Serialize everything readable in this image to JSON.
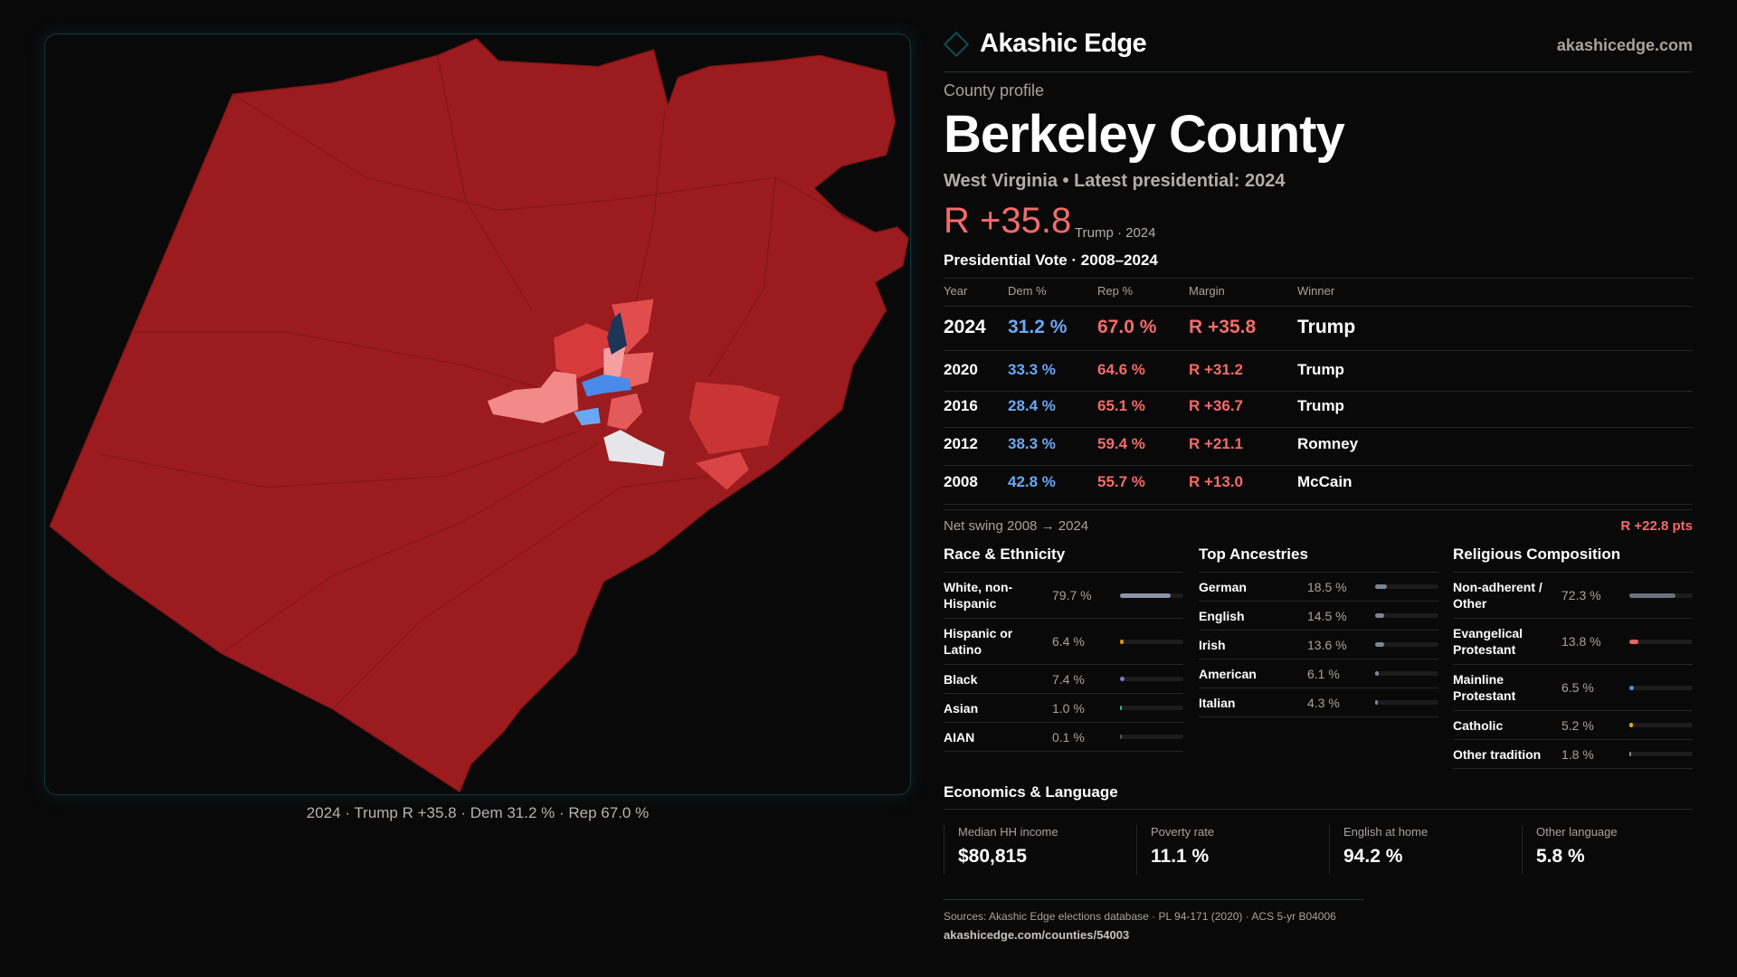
{
  "brand": {
    "name": "Akashic Edge",
    "site": "akashicedge.com"
  },
  "profile": {
    "kicker": "County profile",
    "title": "Berkeley County",
    "subtitle": "West Virginia • Latest presidential: 2024",
    "margin": "R +35.8",
    "margin_sub": "Trump · 2024"
  },
  "map": {
    "caption": "2024 · Trump R +35.8 · Dem 31.2 % · Rep 67.0 %"
  },
  "votes": {
    "title": "Presidential Vote · 2008–2024",
    "headers": [
      "Year",
      "Dem %",
      "Rep %",
      "Margin",
      "Winner"
    ],
    "rows": [
      {
        "year": "2024",
        "dem": "31.2 %",
        "rep": "67.0 %",
        "margin": "R +35.8",
        "winner": "Trump"
      },
      {
        "year": "2020",
        "dem": "33.3 %",
        "rep": "64.6 %",
        "margin": "R +31.2",
        "winner": "Trump"
      },
      {
        "year": "2016",
        "dem": "28.4 %",
        "rep": "65.1 %",
        "margin": "R +36.7",
        "winner": "Trump"
      },
      {
        "year": "2012",
        "dem": "38.3 %",
        "rep": "59.4 %",
        "margin": "R +21.1",
        "winner": "Romney"
      },
      {
        "year": "2008",
        "dem": "42.8 %",
        "rep": "55.7 %",
        "margin": "R +13.0",
        "winner": "McCain"
      }
    ]
  },
  "swing": {
    "label": "Net swing 2008 → 2024",
    "value": "R +22.8 pts"
  },
  "race": {
    "title": "Race & Ethnicity",
    "items": [
      {
        "label": "White, non-Hispanic",
        "value": "79.7 %",
        "pct": 79.7,
        "color": "#8a95a8"
      },
      {
        "label": "Hispanic or Latino",
        "value": "6.4 %",
        "pct": 6.4,
        "color": "#d4950f"
      },
      {
        "label": "Black",
        "value": "7.4 %",
        "pct": 7.4,
        "color": "#8a6ee0"
      },
      {
        "label": "Asian",
        "value": "1.0 %",
        "pct": 1.0,
        "color": "#2bb59a"
      },
      {
        "label": "AIAN",
        "value": "0.1 %",
        "pct": 0.1,
        "color": "#555555"
      }
    ]
  },
  "ancestry": {
    "title": "Top Ancestries",
    "items": [
      {
        "label": "German",
        "value": "18.5 %",
        "pct": 18.5,
        "color": "#7c8596"
      },
      {
        "label": "English",
        "value": "14.5 %",
        "pct": 14.5,
        "color": "#7c8596"
      },
      {
        "label": "Irish",
        "value": "13.6 %",
        "pct": 13.6,
        "color": "#7c8596"
      },
      {
        "label": "American",
        "value": "6.1 %",
        "pct": 6.1,
        "color": "#7c8596"
      },
      {
        "label": "Italian",
        "value": "4.3 %",
        "pct": 4.3,
        "color": "#7c8596"
      }
    ]
  },
  "religion": {
    "title": "Religious Composition",
    "items": [
      {
        "label": "Non-adherent / Other",
        "value": "72.3 %",
        "pct": 72.3,
        "color": "#6b7280"
      },
      {
        "label": "Evangelical Protestant",
        "value": "13.8 %",
        "pct": 13.8,
        "color": "#e06666"
      },
      {
        "label": "Mainline Protestant",
        "value": "6.5 %",
        "pct": 6.5,
        "color": "#4f8ff0"
      },
      {
        "label": "Catholic",
        "value": "5.2 %",
        "pct": 5.2,
        "color": "#e0a812"
      },
      {
        "label": "Other tradition",
        "value": "1.8 %",
        "pct": 1.8,
        "color": "#8a8a8a"
      }
    ]
  },
  "economics": {
    "title": "Economics & Language",
    "cards": [
      {
        "label": "Median HH income",
        "value": "$80,815"
      },
      {
        "label": "Poverty rate",
        "value": "11.1 %"
      },
      {
        "label": "English at home",
        "value": "94.2 %"
      },
      {
        "label": "Other language",
        "value": "5.8 %"
      }
    ]
  },
  "footer": {
    "sources": "Sources: Akashic Edge elections database · PL 94-171 (2020) · ACS 5-yr B04006",
    "url": "akashicedge.com/counties/54003"
  },
  "colors": {
    "rep": "#f46b6b",
    "dem": "#6aa8f5",
    "county_fill": "#9b1b1e"
  }
}
